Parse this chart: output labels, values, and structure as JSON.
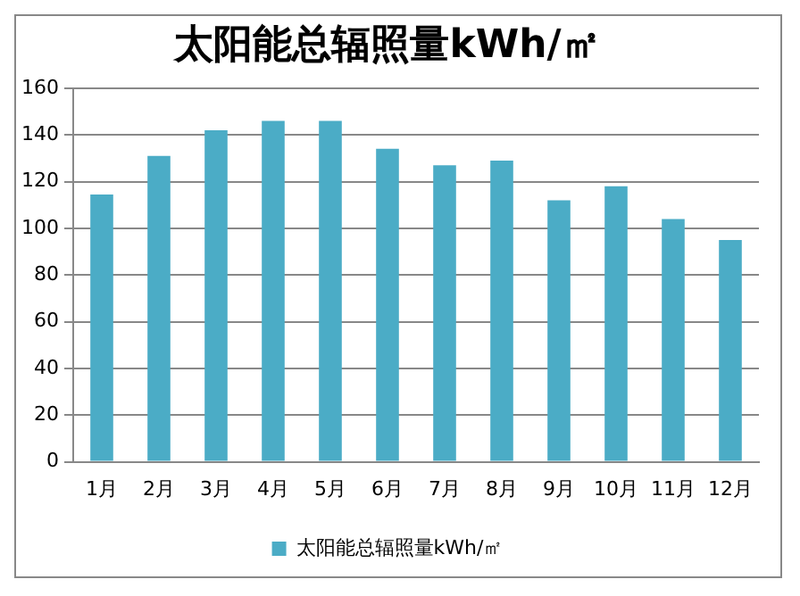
{
  "chart_data": {
    "type": "bar",
    "title": "太阳能总辐照量kWh/㎡",
    "categories": [
      "1月",
      "2月",
      "3月",
      "4月",
      "5月",
      "6月",
      "7月",
      "8月",
      "9月",
      "10月",
      "11月",
      "12月"
    ],
    "series": [
      {
        "name": "太阳能总辐照量kWh/㎡",
        "color": "#4bacc6",
        "values": [
          114.5,
          131,
          142,
          146,
          146,
          134,
          127,
          129,
          112,
          118,
          104,
          95
        ]
      }
    ],
    "ylim": [
      0,
      160
    ],
    "yticks": [
      0,
      20,
      40,
      60,
      80,
      100,
      120,
      140,
      160
    ],
    "grid": "y",
    "legend": "bottom"
  }
}
